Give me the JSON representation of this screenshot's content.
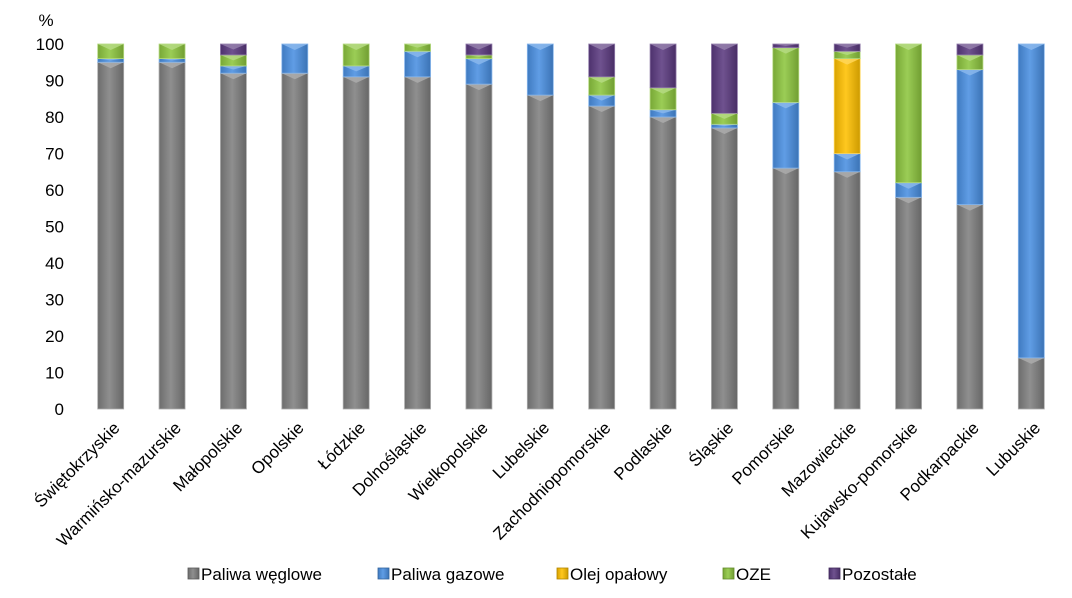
{
  "chart_data": {
    "type": "bar",
    "stacked": true,
    "ylabel": "%",
    "ylim": [
      0,
      100
    ],
    "yticks": [
      0,
      10,
      20,
      30,
      40,
      50,
      60,
      70,
      80,
      90,
      100
    ],
    "grid": false,
    "legend_position": "bottom",
    "categories": [
      "Świętokrzyskie",
      "Warmińsko-mazurskie",
      "Małopolskie",
      "Opolskie",
      "Łódzkie",
      "Dolnośląskie",
      "Wielkopolskie",
      "Lubelskie",
      "Zachodniopomorskie",
      "Podlaskie",
      "Śląskie",
      "Pomorskie",
      "Mazowieckie",
      "Kujawsko-pomorskie",
      "Podkarpackie",
      "Lubuskie"
    ],
    "series": [
      {
        "name": "Paliwa węglowe",
        "color": "#808080",
        "values": [
          95,
          95,
          92,
          92,
          91,
          91,
          89,
          86,
          83,
          80,
          77,
          66,
          65,
          58,
          56,
          14
        ]
      },
      {
        "name": "Paliwa gazowe",
        "color": "#4a90e2",
        "values": [
          1,
          1,
          2,
          8,
          3,
          7,
          7,
          14,
          3,
          2,
          1,
          18,
          5,
          4,
          37,
          86
        ]
      },
      {
        "name": "Olej opałowy",
        "color": "#ffc000",
        "values": [
          0,
          0,
          0,
          0,
          0,
          0,
          0,
          0,
          0,
          0,
          0,
          0,
          26,
          0,
          0,
          0
        ]
      },
      {
        "name": "OZE",
        "color": "#8dc63f",
        "values": [
          4,
          4,
          3,
          0,
          6,
          2,
          1,
          0,
          5,
          6,
          3,
          15,
          2,
          38,
          4,
          0
        ]
      },
      {
        "name": "Pozostałe",
        "color": "#5b3a80",
        "values": [
          0,
          0,
          3,
          0,
          0,
          0,
          3,
          0,
          9,
          12,
          19,
          1,
          2,
          0,
          3,
          0
        ]
      }
    ]
  }
}
